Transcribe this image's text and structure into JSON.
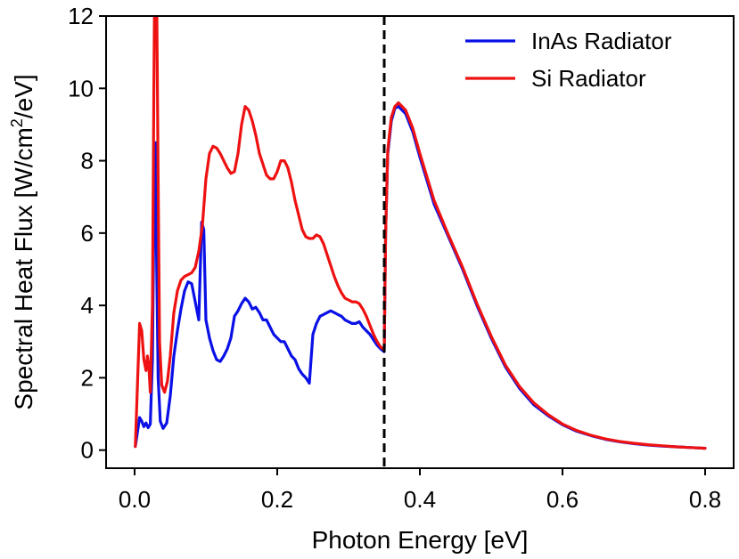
{
  "chart_data": {
    "type": "line",
    "title": "",
    "xlabel": "Photon Energy [eV]",
    "ylabel": "Spectral Heat Flux [W/cm",
    "ylabel_superscript": "2",
    "ylabel_suffix": "/eV]",
    "xlim": [
      -0.04,
      0.84
    ],
    "ylim": [
      -0.5,
      12
    ],
    "x_ticks": [
      0.0,
      0.2,
      0.4,
      0.6,
      0.8
    ],
    "x_tick_labels": [
      "0.0",
      "0.2",
      "0.4",
      "0.6",
      "0.8"
    ],
    "y_ticks": [
      0,
      2,
      4,
      6,
      8,
      10,
      12
    ],
    "y_tick_labels": [
      "0",
      "2",
      "4",
      "6",
      "8",
      "10",
      "12"
    ],
    "grid": false,
    "legend_position": "top-right",
    "vline": {
      "x": 0.35,
      "style": "dashed",
      "color": "#000000"
    },
    "series": [
      {
        "name": "InAs Radiator",
        "color": "#0a10e6",
        "points": [
          [
            0.001,
            0.1
          ],
          [
            0.004,
            0.5
          ],
          [
            0.007,
            0.9
          ],
          [
            0.01,
            0.8
          ],
          [
            0.013,
            0.65
          ],
          [
            0.016,
            0.75
          ],
          [
            0.019,
            0.62
          ],
          [
            0.022,
            0.72
          ],
          [
            0.025,
            2.5
          ],
          [
            0.027,
            6.3
          ],
          [
            0.029,
            8.5
          ],
          [
            0.031,
            5.0
          ],
          [
            0.033,
            2.0
          ],
          [
            0.036,
            0.8
          ],
          [
            0.04,
            0.6
          ],
          [
            0.045,
            0.75
          ],
          [
            0.05,
            1.5
          ],
          [
            0.055,
            2.6
          ],
          [
            0.06,
            3.3
          ],
          [
            0.065,
            3.9
          ],
          [
            0.07,
            4.4
          ],
          [
            0.075,
            4.65
          ],
          [
            0.08,
            4.6
          ],
          [
            0.085,
            4.1
          ],
          [
            0.09,
            3.6
          ],
          [
            0.094,
            6.3
          ],
          [
            0.097,
            6.1
          ],
          [
            0.1,
            3.6
          ],
          [
            0.105,
            3.1
          ],
          [
            0.11,
            2.75
          ],
          [
            0.115,
            2.5
          ],
          [
            0.12,
            2.45
          ],
          [
            0.125,
            2.6
          ],
          [
            0.13,
            2.8
          ],
          [
            0.135,
            3.1
          ],
          [
            0.14,
            3.7
          ],
          [
            0.145,
            3.85
          ],
          [
            0.15,
            4.05
          ],
          [
            0.155,
            4.2
          ],
          [
            0.16,
            4.1
          ],
          [
            0.165,
            3.9
          ],
          [
            0.17,
            3.95
          ],
          [
            0.175,
            3.8
          ],
          [
            0.18,
            3.6
          ],
          [
            0.185,
            3.6
          ],
          [
            0.19,
            3.4
          ],
          [
            0.195,
            3.2
          ],
          [
            0.2,
            3.1
          ],
          [
            0.205,
            3.0
          ],
          [
            0.21,
            3.0
          ],
          [
            0.215,
            2.8
          ],
          [
            0.22,
            2.6
          ],
          [
            0.225,
            2.5
          ],
          [
            0.23,
            2.25
          ],
          [
            0.235,
            2.1
          ],
          [
            0.24,
            2.0
          ],
          [
            0.245,
            1.85
          ],
          [
            0.25,
            3.2
          ],
          [
            0.255,
            3.5
          ],
          [
            0.26,
            3.7
          ],
          [
            0.265,
            3.75
          ],
          [
            0.27,
            3.8
          ],
          [
            0.275,
            3.85
          ],
          [
            0.28,
            3.8
          ],
          [
            0.285,
            3.75
          ],
          [
            0.29,
            3.7
          ],
          [
            0.295,
            3.6
          ],
          [
            0.3,
            3.55
          ],
          [
            0.305,
            3.5
          ],
          [
            0.31,
            3.5
          ],
          [
            0.315,
            3.55
          ],
          [
            0.32,
            3.4
          ],
          [
            0.325,
            3.3
          ],
          [
            0.33,
            3.2
          ],
          [
            0.335,
            3.05
          ],
          [
            0.34,
            2.9
          ],
          [
            0.345,
            2.8
          ],
          [
            0.35,
            2.72
          ],
          [
            0.352,
            6.0
          ],
          [
            0.355,
            8.2
          ],
          [
            0.36,
            9.1
          ],
          [
            0.365,
            9.45
          ],
          [
            0.37,
            9.5
          ],
          [
            0.38,
            9.3
          ],
          [
            0.39,
            8.8
          ],
          [
            0.4,
            8.1
          ],
          [
            0.42,
            6.8
          ],
          [
            0.44,
            5.9
          ],
          [
            0.46,
            5.0
          ],
          [
            0.48,
            4.0
          ],
          [
            0.5,
            3.1
          ],
          [
            0.52,
            2.3
          ],
          [
            0.54,
            1.7
          ],
          [
            0.56,
            1.25
          ],
          [
            0.58,
            0.95
          ],
          [
            0.6,
            0.7
          ],
          [
            0.62,
            0.52
          ],
          [
            0.64,
            0.4
          ],
          [
            0.66,
            0.3
          ],
          [
            0.68,
            0.23
          ],
          [
            0.7,
            0.18
          ],
          [
            0.72,
            0.14
          ],
          [
            0.74,
            0.11
          ],
          [
            0.76,
            0.09
          ],
          [
            0.78,
            0.07
          ],
          [
            0.8,
            0.05
          ]
        ]
      },
      {
        "name": "Si Radiator",
        "color": "#ee1111",
        "points": [
          [
            0.001,
            0.1
          ],
          [
            0.004,
            1.8
          ],
          [
            0.007,
            3.5
          ],
          [
            0.01,
            3.3
          ],
          [
            0.013,
            2.5
          ],
          [
            0.016,
            2.2
          ],
          [
            0.018,
            2.6
          ],
          [
            0.02,
            2.3
          ],
          [
            0.022,
            1.6
          ],
          [
            0.025,
            4.0
          ],
          [
            0.027,
            10.0
          ],
          [
            0.028,
            12.5
          ],
          [
            0.031,
            12.5
          ],
          [
            0.033,
            7.5
          ],
          [
            0.035,
            3.0
          ],
          [
            0.038,
            1.8
          ],
          [
            0.042,
            1.6
          ],
          [
            0.046,
            1.9
          ],
          [
            0.05,
            2.6
          ],
          [
            0.055,
            3.8
          ],
          [
            0.06,
            4.4
          ],
          [
            0.065,
            4.7
          ],
          [
            0.07,
            4.8
          ],
          [
            0.075,
            4.85
          ],
          [
            0.08,
            4.9
          ],
          [
            0.085,
            5.05
          ],
          [
            0.09,
            5.5
          ],
          [
            0.095,
            6.2
          ],
          [
            0.1,
            7.5
          ],
          [
            0.105,
            8.2
          ],
          [
            0.11,
            8.4
          ],
          [
            0.115,
            8.35
          ],
          [
            0.12,
            8.2
          ],
          [
            0.125,
            8.0
          ],
          [
            0.13,
            7.8
          ],
          [
            0.135,
            7.65
          ],
          [
            0.14,
            7.7
          ],
          [
            0.145,
            8.2
          ],
          [
            0.15,
            9.0
          ],
          [
            0.155,
            9.5
          ],
          [
            0.16,
            9.4
          ],
          [
            0.165,
            9.1
          ],
          [
            0.17,
            8.7
          ],
          [
            0.175,
            8.2
          ],
          [
            0.18,
            7.9
          ],
          [
            0.185,
            7.6
          ],
          [
            0.19,
            7.5
          ],
          [
            0.195,
            7.5
          ],
          [
            0.2,
            7.7
          ],
          [
            0.205,
            8.0
          ],
          [
            0.21,
            8.0
          ],
          [
            0.215,
            7.8
          ],
          [
            0.22,
            7.4
          ],
          [
            0.225,
            6.9
          ],
          [
            0.23,
            6.5
          ],
          [
            0.235,
            6.1
          ],
          [
            0.24,
            5.9
          ],
          [
            0.245,
            5.85
          ],
          [
            0.25,
            5.85
          ],
          [
            0.255,
            5.95
          ],
          [
            0.26,
            5.9
          ],
          [
            0.265,
            5.7
          ],
          [
            0.27,
            5.4
          ],
          [
            0.275,
            5.1
          ],
          [
            0.28,
            4.8
          ],
          [
            0.285,
            4.55
          ],
          [
            0.29,
            4.35
          ],
          [
            0.295,
            4.2
          ],
          [
            0.3,
            4.15
          ],
          [
            0.305,
            4.1
          ],
          [
            0.31,
            4.1
          ],
          [
            0.315,
            4.05
          ],
          [
            0.32,
            3.9
          ],
          [
            0.325,
            3.7
          ],
          [
            0.33,
            3.45
          ],
          [
            0.335,
            3.2
          ],
          [
            0.34,
            3.0
          ],
          [
            0.345,
            2.85
          ],
          [
            0.35,
            2.78
          ],
          [
            0.352,
            6.0
          ],
          [
            0.355,
            8.3
          ],
          [
            0.36,
            9.2
          ],
          [
            0.365,
            9.5
          ],
          [
            0.37,
            9.6
          ],
          [
            0.38,
            9.4
          ],
          [
            0.39,
            8.9
          ],
          [
            0.4,
            8.2
          ],
          [
            0.42,
            6.9
          ],
          [
            0.44,
            5.95
          ],
          [
            0.46,
            5.05
          ],
          [
            0.48,
            4.05
          ],
          [
            0.5,
            3.15
          ],
          [
            0.52,
            2.35
          ],
          [
            0.54,
            1.75
          ],
          [
            0.56,
            1.3
          ],
          [
            0.58,
            0.98
          ],
          [
            0.6,
            0.72
          ],
          [
            0.62,
            0.54
          ],
          [
            0.64,
            0.41
          ],
          [
            0.66,
            0.31
          ],
          [
            0.68,
            0.24
          ],
          [
            0.7,
            0.19
          ],
          [
            0.72,
            0.15
          ],
          [
            0.74,
            0.12
          ],
          [
            0.76,
            0.09
          ],
          [
            0.78,
            0.07
          ],
          [
            0.8,
            0.05
          ]
        ]
      }
    ]
  }
}
